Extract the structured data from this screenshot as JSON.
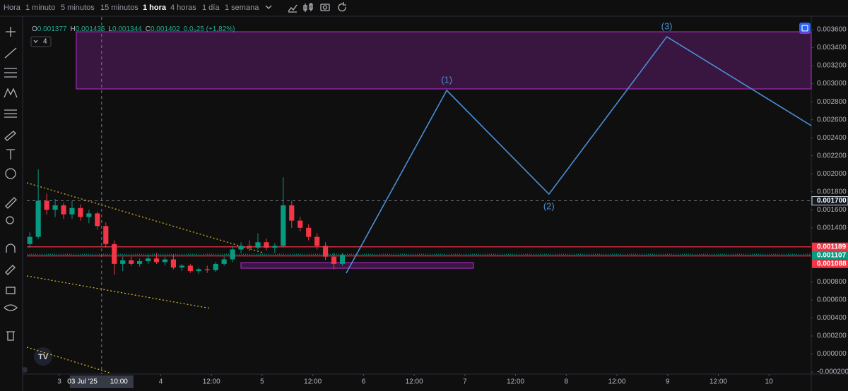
{
  "toolbar": {
    "timeframes": [
      "Hora",
      "1 minuto",
      "5 minutos",
      "15 minutos",
      "1 hora",
      "4 horas",
      "1 día",
      "1 semana"
    ],
    "active_index": 4
  },
  "legend": {
    "items": [
      {
        "key": "O",
        "value": "0.001377"
      },
      {
        "key": "H",
        "value": "0.001435"
      },
      {
        "key": "L",
        "value": "0.001344"
      },
      {
        "key": "C",
        "value": "0.001402"
      }
    ],
    "change": "0.0₀25 (+1,82%)",
    "indicators": "4"
  },
  "chart_data": {
    "type": "candlestick",
    "up_color": "#089981",
    "down_color": "#f23645",
    "xlim": [
      -7.7,
      178
    ],
    "ylim": [
      -0.000223,
      0.003694
    ],
    "xticks": [
      {
        "value": 0,
        "label": "3"
      },
      {
        "value": 24,
        "label": "4"
      },
      {
        "value": 36,
        "label": "12:00"
      },
      {
        "value": 48,
        "label": "5"
      },
      {
        "value": 60,
        "label": "12:00"
      },
      {
        "value": 72,
        "label": "6"
      },
      {
        "value": 84,
        "label": "12:00"
      },
      {
        "value": 96,
        "label": "7"
      },
      {
        "value": 108,
        "label": "12:00"
      },
      {
        "value": 120,
        "label": "8"
      },
      {
        "value": 132,
        "label": "12:00"
      },
      {
        "value": 144,
        "label": "9"
      },
      {
        "value": 156,
        "label": "12:00"
      },
      {
        "value": 168,
        "label": "10"
      }
    ],
    "yticks": [
      {
        "value": 0.0036,
        "label": "0.003600"
      },
      {
        "value": 0.0034,
        "label": "0.003400"
      },
      {
        "value": 0.0032,
        "label": "0.003200"
      },
      {
        "value": 0.003,
        "label": "0.003000"
      },
      {
        "value": 0.0028,
        "label": "0.002800"
      },
      {
        "value": 0.0026,
        "label": "0.002600"
      },
      {
        "value": 0.0024,
        "label": "0.002400"
      },
      {
        "value": 0.0022,
        "label": "0.002200"
      },
      {
        "value": 0.002,
        "label": "0.002000"
      },
      {
        "value": 0.0018,
        "label": "0.001800"
      },
      {
        "value": 0.0016,
        "label": "0.001600"
      },
      {
        "value": 0.0014,
        "label": "0.001400"
      },
      {
        "value": 0.0008,
        "label": "0.000800"
      },
      {
        "value": 0.0006,
        "label": "0.000600"
      },
      {
        "value": 0.0004,
        "label": "0.000400"
      },
      {
        "value": 0.0002,
        "label": "0.000200"
      },
      {
        "value": 0,
        "label": "0.000000"
      },
      {
        "value": -0.0002,
        "label": "-0.000200"
      }
    ],
    "candles": [
      {
        "t": -7,
        "o": 0.00122,
        "h": 0.00135,
        "l": 0.00118,
        "c": 0.0013
      },
      {
        "t": -5,
        "o": 0.0013,
        "h": 0.00205,
        "l": 0.00128,
        "c": 0.0017
      },
      {
        "t": -3,
        "o": 0.0017,
        "h": 0.00178,
        "l": 0.00155,
        "c": 0.0016
      },
      {
        "t": -1,
        "o": 0.0016,
        "h": 0.00172,
        "l": 0.00152,
        "c": 0.00165
      },
      {
        "t": 1,
        "o": 0.00165,
        "h": 0.00168,
        "l": 0.0015,
        "c": 0.00155
      },
      {
        "t": 3,
        "o": 0.00155,
        "h": 0.0017,
        "l": 0.0015,
        "c": 0.00162
      },
      {
        "t": 5,
        "o": 0.00162,
        "h": 0.00166,
        "l": 0.00148,
        "c": 0.00152
      },
      {
        "t": 7,
        "o": 0.00152,
        "h": 0.0016,
        "l": 0.00145,
        "c": 0.00156
      },
      {
        "t": 9,
        "o": 0.00156,
        "h": 0.00158,
        "l": 0.00138,
        "c": 0.00142
      },
      {
        "t": 11,
        "o": 0.00142,
        "h": 0.00146,
        "l": 0.00118,
        "c": 0.00122
      },
      {
        "t": 13,
        "o": 0.00122,
        "h": 0.00126,
        "l": 0.00088,
        "c": 0.001
      },
      {
        "t": 15,
        "o": 0.001,
        "h": 0.00108,
        "l": 0.00092,
        "c": 0.00104
      },
      {
        "t": 17,
        "o": 0.00104,
        "h": 0.00108,
        "l": 0.00098,
        "c": 0.001
      },
      {
        "t": 19,
        "o": 0.001,
        "h": 0.00106,
        "l": 0.00097,
        "c": 0.00103
      },
      {
        "t": 21,
        "o": 0.00103,
        "h": 0.0011,
        "l": 0.001,
        "c": 0.00106
      },
      {
        "t": 23,
        "o": 0.00106,
        "h": 0.00112,
        "l": 0.001,
        "c": 0.00102
      },
      {
        "t": 25,
        "o": 0.00102,
        "h": 0.00108,
        "l": 0.00098,
        "c": 0.00105
      },
      {
        "t": 27,
        "o": 0.00105,
        "h": 0.0011,
        "l": 0.00094,
        "c": 0.00096
      },
      {
        "t": 29,
        "o": 0.00096,
        "h": 0.001,
        "l": 0.00092,
        "c": 0.00098
      },
      {
        "t": 31,
        "o": 0.00098,
        "h": 0.001,
        "l": 0.0009,
        "c": 0.00092
      },
      {
        "t": 33,
        "o": 0.00092,
        "h": 0.00096,
        "l": 0.00089,
        "c": 0.00094
      },
      {
        "t": 35,
        "o": 0.00094,
        "h": 0.00098,
        "l": 0.0009,
        "c": 0.00093
      },
      {
        "t": 37,
        "o": 0.00093,
        "h": 0.00102,
        "l": 0.00091,
        "c": 0.001
      },
      {
        "t": 39,
        "o": 0.001,
        "h": 0.00108,
        "l": 0.00098,
        "c": 0.00105
      },
      {
        "t": 41,
        "o": 0.00105,
        "h": 0.0012,
        "l": 0.00102,
        "c": 0.00116
      },
      {
        "t": 43,
        "o": 0.00116,
        "h": 0.00124,
        "l": 0.00112,
        "c": 0.0012
      },
      {
        "t": 45,
        "o": 0.0012,
        "h": 0.00126,
        "l": 0.00114,
        "c": 0.00118
      },
      {
        "t": 47,
        "o": 0.00118,
        "h": 0.00134,
        "l": 0.00116,
        "c": 0.00124
      },
      {
        "t": 49,
        "o": 0.00124,
        "h": 0.00128,
        "l": 0.00115,
        "c": 0.00118
      },
      {
        "t": 51,
        "o": 0.00118,
        "h": 0.00123,
        "l": 0.00112,
        "c": 0.0012
      },
      {
        "t": 53,
        "o": 0.0012,
        "h": 0.00196,
        "l": 0.00118,
        "c": 0.00165
      },
      {
        "t": 55,
        "o": 0.00165,
        "h": 0.0017,
        "l": 0.0014,
        "c": 0.00148
      },
      {
        "t": 57,
        "o": 0.00148,
        "h": 0.00152,
        "l": 0.00136,
        "c": 0.0014
      },
      {
        "t": 59,
        "o": 0.0014,
        "h": 0.00144,
        "l": 0.00126,
        "c": 0.0013
      },
      {
        "t": 61,
        "o": 0.0013,
        "h": 0.00134,
        "l": 0.00116,
        "c": 0.0012
      },
      {
        "t": 63,
        "o": 0.0012,
        "h": 0.00124,
        "l": 0.00104,
        "c": 0.00108
      },
      {
        "t": 65,
        "o": 0.00108,
        "h": 0.00112,
        "l": 0.00094,
        "c": 0.001
      },
      {
        "t": 67,
        "o": 0.001,
        "h": 0.00112,
        "l": 0.00098,
        "c": 0.0011
      }
    ],
    "projection": {
      "color": "#4a8fd6",
      "x": [
        67.9,
        91.7,
        115.9,
        143.8,
        178
      ],
      "y": [
        0.000897,
        0.002926,
        0.001774,
        0.003521,
        0.002534
      ]
    },
    "wave_labels": [
      "(1)",
      "(2)",
      "(3)"
    ],
    "zones": [
      {
        "x": [
          4,
          178
        ],
        "y": [
          0.002942,
          0.003576
        ],
        "color": "#9c27b0"
      },
      {
        "x": [
          43,
          98
        ],
        "y": [
          0.000952,
          0.001014
        ],
        "color": "#9c27b0"
      }
    ],
    "price_lines": [
      {
        "value": 0.001189,
        "label": "0.001189",
        "color": "#f23645"
      },
      {
        "value": 0.001107,
        "label": "0.001107",
        "color": "#089981"
      },
      {
        "value": 0.001088,
        "label": "0.001088",
        "color": "#f23645"
      }
    ],
    "crosshair": {
      "x": 10,
      "y": 0.0017,
      "y_label": "0.001700",
      "date": "03 Jul '25",
      "time": "10:00"
    }
  }
}
